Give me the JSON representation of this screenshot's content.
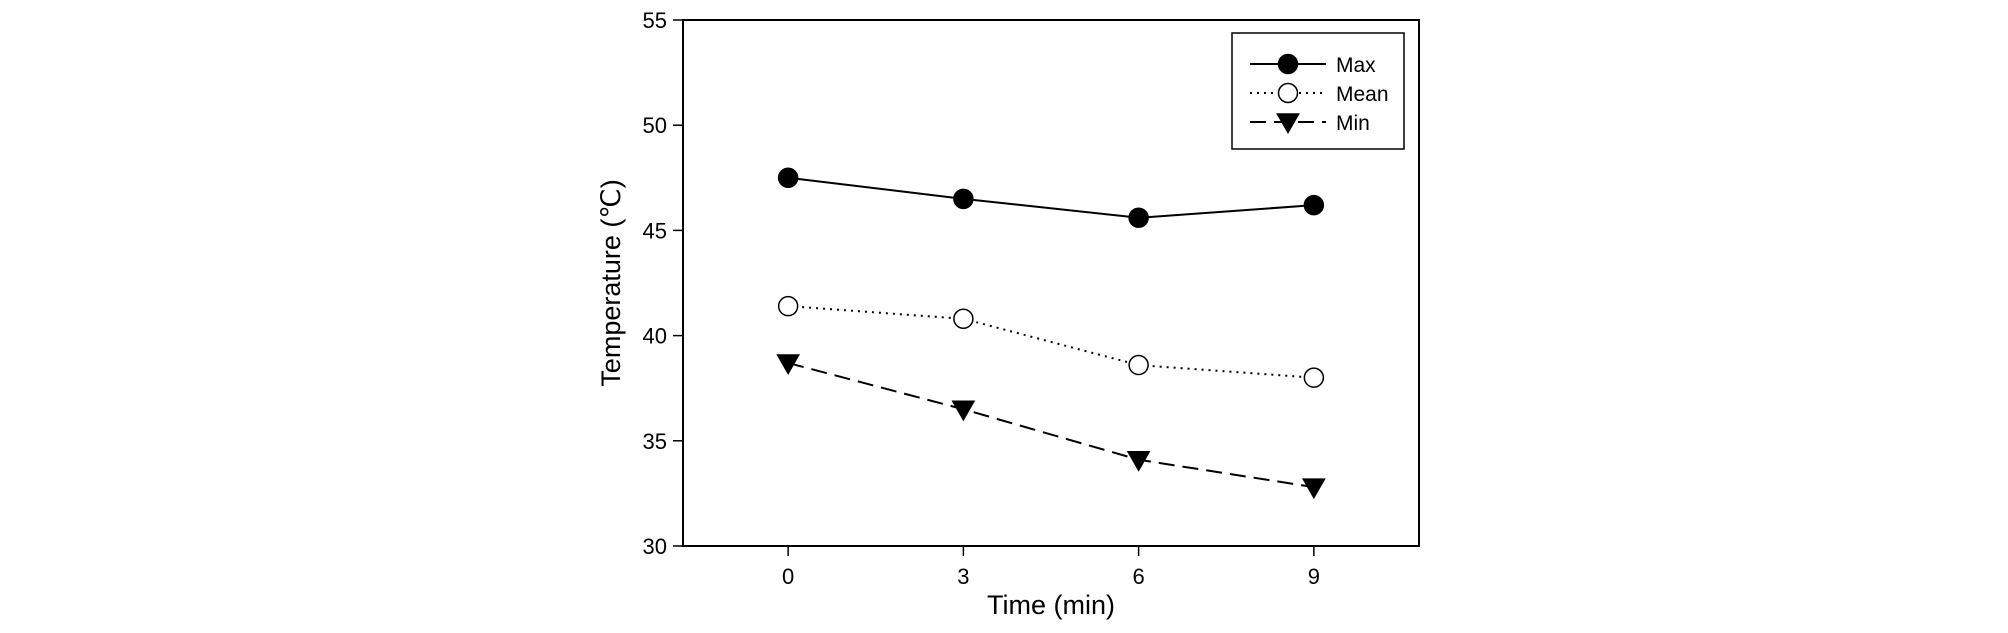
{
  "chart_data": {
    "type": "line",
    "xlabel": "Time (min)",
    "ylabel": "Temperature (℃)",
    "x": [
      0,
      3,
      6,
      9
    ],
    "x_ticks": [
      "0",
      "3",
      "6",
      "9"
    ],
    "xlim": [
      -1.8,
      10.8
    ],
    "ylim": [
      30,
      55
    ],
    "y_ticks": [
      "30",
      "35",
      "40",
      "45",
      "50",
      "55"
    ],
    "grid": false,
    "legend_position": "top-right",
    "series": [
      {
        "name": "Max",
        "values": [
          47.5,
          46.5,
          45.6,
          46.2
        ],
        "marker": "filled-circle",
        "line": "solid",
        "color": "#000000"
      },
      {
        "name": "Mean",
        "values": [
          41.4,
          40.8,
          38.6,
          38.0
        ],
        "marker": "open-circle",
        "line": "dotted",
        "color": "#000000"
      },
      {
        "name": "Min",
        "values": [
          38.7,
          36.5,
          34.1,
          32.8
        ],
        "marker": "filled-triangle-down",
        "line": "dashed",
        "color": "#000000"
      }
    ]
  }
}
